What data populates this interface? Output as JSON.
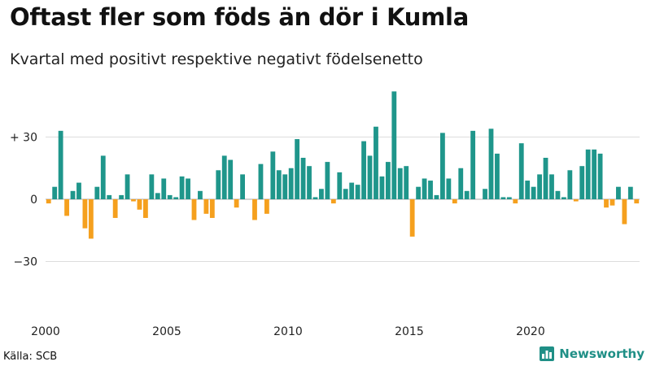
{
  "title": "Oftast fler som föds än dör i Kumla",
  "subtitle": "Kvartal med positivt respektive negativt födelsenetto",
  "source": "Källa: SCB",
  "brand": "Newsworthy",
  "colors": {
    "positive": "#1f968b",
    "negative": "#f5a01e",
    "grid": "#dddddd",
    "zero": "#aaaaaa"
  },
  "chart_data": {
    "type": "bar",
    "x_start": {
      "year": 2000,
      "quarter": 1
    },
    "frequency": "quarterly",
    "ylim": [
      -55,
      55
    ],
    "yticks": [
      {
        "value": 30,
        "label": "+ 30"
      },
      {
        "value": 0,
        "label": "0"
      },
      {
        "value": -30,
        "label": "−30"
      }
    ],
    "xticks": [
      {
        "year": 2000,
        "label": "2000"
      },
      {
        "year": 2005,
        "label": "2005"
      },
      {
        "year": 2010,
        "label": "2010"
      },
      {
        "year": 2015,
        "label": "2015"
      },
      {
        "year": 2020,
        "label": "2020"
      }
    ],
    "grid": true,
    "values": [
      -2,
      6,
      33,
      -8,
      4,
      8,
      -14,
      -19,
      6,
      21,
      2,
      -9,
      2,
      12,
      -1,
      -5,
      -9,
      12,
      3,
      10,
      2,
      1,
      11,
      10,
      -10,
      4,
      -7,
      -9,
      14,
      21,
      19,
      -4,
      12,
      0,
      -10,
      17,
      -7,
      23,
      14,
      12,
      15,
      29,
      20,
      16,
      1,
      5,
      18,
      -2,
      13,
      5,
      8,
      7,
      28,
      21,
      35,
      11,
      18,
      52,
      15,
      16,
      -18,
      6,
      10,
      9,
      2,
      32,
      10,
      -2,
      15,
      4,
      33,
      0,
      5,
      34,
      22,
      1,
      1,
      -2,
      27,
      9,
      6,
      12,
      20,
      12,
      4,
      1,
      14,
      -1,
      16,
      24,
      24,
      22,
      -4,
      -3,
      6,
      -12,
      6,
      -2
    ]
  }
}
